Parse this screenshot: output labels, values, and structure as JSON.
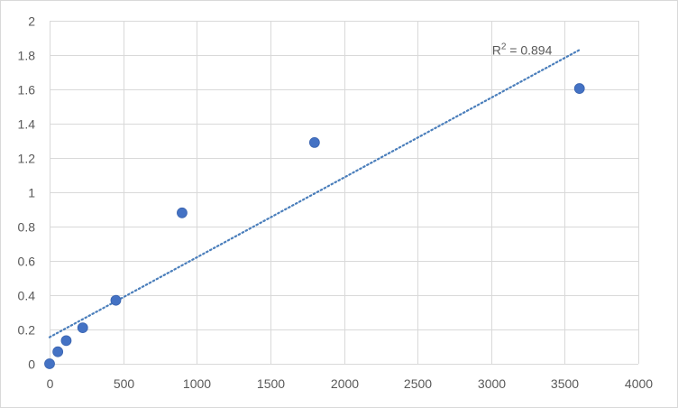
{
  "chart_data": {
    "type": "scatter",
    "title": "",
    "xlabel": "",
    "ylabel": "",
    "xlim": [
      0,
      4000
    ],
    "ylim": [
      0,
      2
    ],
    "x_ticks": [
      0,
      500,
      1000,
      1500,
      2000,
      2500,
      3000,
      3500,
      4000
    ],
    "y_ticks": [
      0,
      0.2,
      0.4,
      0.6,
      0.8,
      1,
      1.2,
      1.4,
      1.6,
      1.8,
      2
    ],
    "x_tick_labels": [
      "0",
      "500",
      "1000",
      "1500",
      "2000",
      "2500",
      "3000",
      "3500",
      "4000"
    ],
    "y_tick_labels": [
      "0",
      "0.2",
      "0.4",
      "0.6",
      "0.8",
      "1",
      "1.2",
      "1.4",
      "1.6",
      "1.8",
      "2"
    ],
    "grid": true,
    "legend": "none",
    "series": [
      {
        "color": "#4472c4",
        "points": [
          {
            "x": 0,
            "y": 0.0
          },
          {
            "x": 56,
            "y": 0.07
          },
          {
            "x": 113,
            "y": 0.135
          },
          {
            "x": 225,
            "y": 0.21
          },
          {
            "x": 450,
            "y": 0.37
          },
          {
            "x": 900,
            "y": 0.88
          },
          {
            "x": 1800,
            "y": 1.29
          },
          {
            "x": 3600,
            "y": 1.605
          }
        ]
      }
    ],
    "trendline": {
      "type": "linear",
      "style": "dotted",
      "color": "#4a7ebb",
      "x_range": [
        0,
        3600
      ],
      "y_start": 0.155,
      "y_end": 1.83,
      "label_prefix": "R",
      "label_sup": "2",
      "label_suffix": " = 0.894"
    }
  }
}
